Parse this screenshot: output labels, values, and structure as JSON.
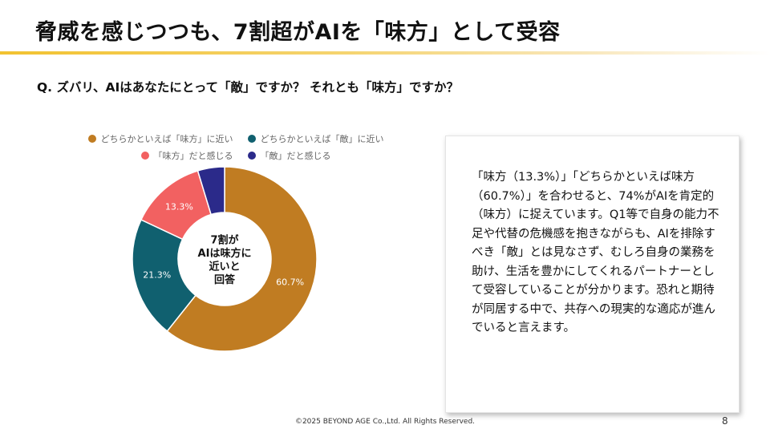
{
  "slide": {
    "title": "脅威を感じつつも、7割超がAIを「味方」として受容",
    "question": "Q. ズバリ、AIはあなたにとって「敵」ですか？ それとも「味方」ですか？",
    "callout_text": "「味方（13.3%）」「どちらかといえば味方（60.7%）」を合わせると、74%がAIを肯定的（味方）に捉えています。Q1等で自身の能力不足や代替の危機感を抱きながらも、AIを排除すべき「敵」とは見なさず、むしろ自身の業務を助け、生活を豊かにしてくれるパートナーとして受容していることが分かります。恐れと期待が同居する中で、共存への現実的な適応が進んでいると言えます。",
    "footer": "©2025 BEYOND AGE Co.,Ltd. All Rights Reserved.",
    "page_number": "8"
  },
  "chart_data": {
    "type": "pie",
    "categories": [
      "どちらかといえば「味方」に近い",
      "どちらかといえば「敵」に近い",
      "「味方」だと感じる",
      "「敵」だと感じる"
    ],
    "values": [
      60.7,
      21.3,
      13.3,
      4.7
    ],
    "data_labels": [
      "60.7%",
      "21.3%",
      "13.3%",
      ""
    ],
    "colors": [
      "#c07c22",
      "#10606f",
      "#f26161",
      "#2b2a8a"
    ],
    "center_label": [
      "7割が",
      "AIは味方に",
      "近いと",
      "回答"
    ],
    "legend_position": "top"
  }
}
